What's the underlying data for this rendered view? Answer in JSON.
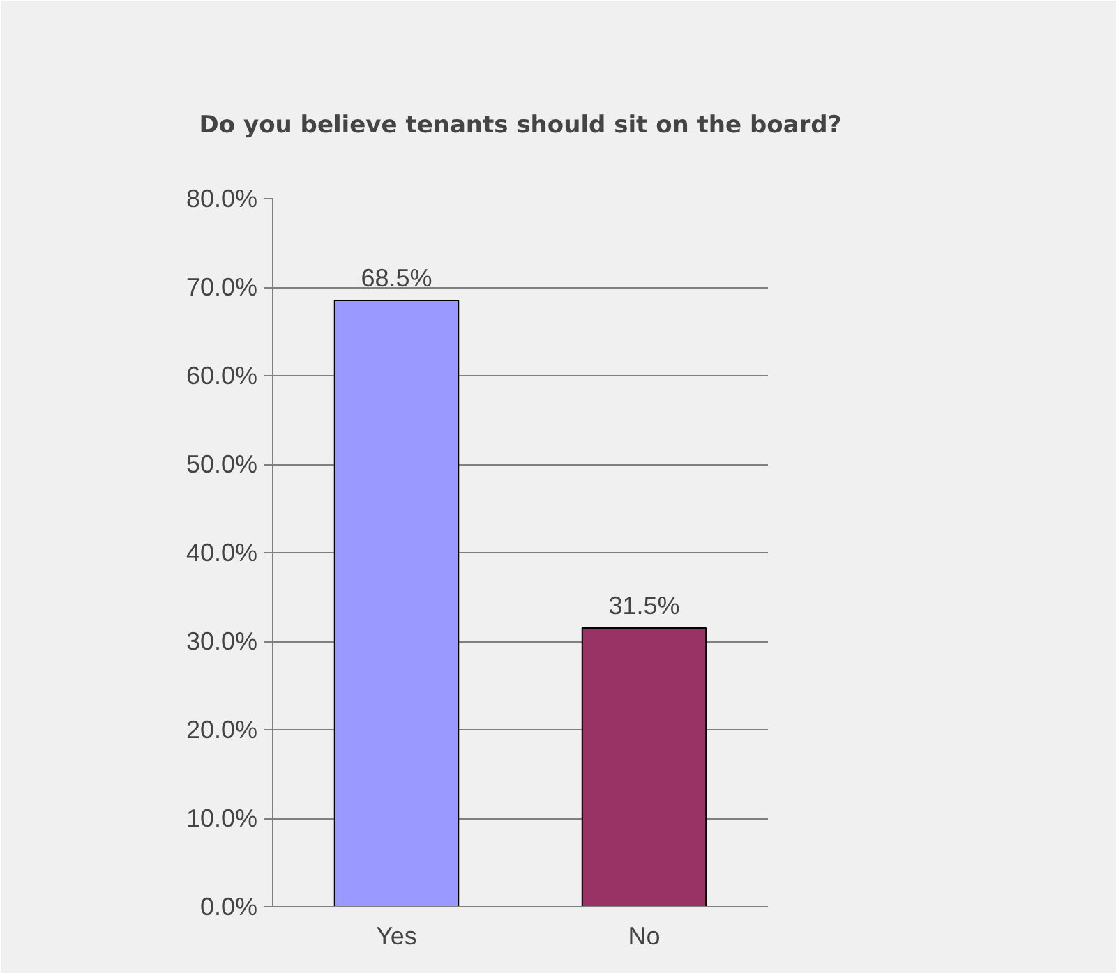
{
  "chart_data": {
    "type": "bar",
    "title": "Do you believe tenants should sit on the board?",
    "categories": [
      "Yes",
      "No"
    ],
    "values": [
      68.5,
      31.5
    ],
    "colors": [
      "#9999ff",
      "#993366"
    ],
    "value_labels": [
      "68.5%",
      "31.5%"
    ],
    "ylim": [
      0,
      80
    ],
    "yticks": [
      {
        "value": 0,
        "label": "0.0%"
      },
      {
        "value": 10,
        "label": "10.0%"
      },
      {
        "value": 20,
        "label": "20.0%"
      },
      {
        "value": 30,
        "label": "30.0%"
      },
      {
        "value": 40,
        "label": "40.0%"
      },
      {
        "value": 50,
        "label": "50.0%"
      },
      {
        "value": 60,
        "label": "60.0%"
      },
      {
        "value": 70,
        "label": "70.0%"
      },
      {
        "value": 80,
        "label": "80.0%"
      }
    ],
    "grid": "y"
  }
}
